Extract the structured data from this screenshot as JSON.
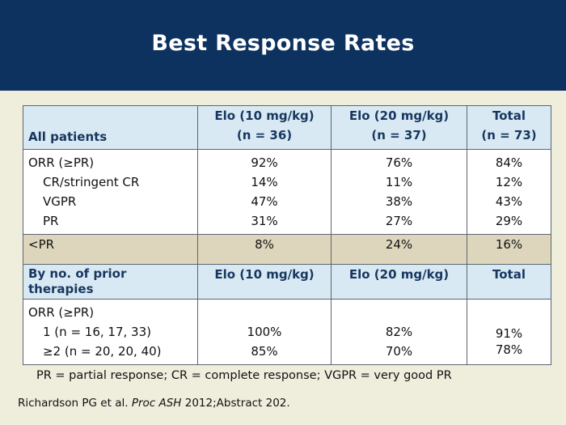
{
  "slide": {
    "title": "Best Response Rates",
    "colors": {
      "header_bg": "#0d325f",
      "table_header_bg": "#d8e9f4",
      "highlight_row_bg": "#ddd6bd",
      "slide_bg": "#efeddc"
    }
  },
  "table": {
    "header1": {
      "label": "All patients",
      "col1_line1": "Elo (10 mg/kg)",
      "col1_line2": "(n = 36)",
      "col2_line1": "Elo (20 mg/kg)",
      "col2_line2": "(n = 37)",
      "col3_line1": "Total",
      "col3_line2": "(n = 73)"
    },
    "group1": {
      "rows": [
        {
          "label": "ORR (≥PR)",
          "c1": "92%",
          "c2": "76%",
          "c3": "84%"
        },
        {
          "label": "CR/stringent CR",
          "c1": "14%",
          "c2": "11%",
          "c3": "12%"
        },
        {
          "label": "VGPR",
          "c1": "47%",
          "c2": "38%",
          "c3": "43%"
        },
        {
          "label": "PR",
          "c1": "31%",
          "c2": "27%",
          "c3": "29%"
        }
      ]
    },
    "less_than_pr": {
      "label": "<PR",
      "c1": "8%",
      "c2": "24%",
      "c3": "16%"
    },
    "header2": {
      "label_line1": "By no. of prior",
      "label_line2": "therapies",
      "col1": "Elo (10 mg/kg)",
      "col2": "Elo (20 mg/kg)",
      "col3": "Total"
    },
    "group2": {
      "rows": [
        {
          "label": "ORR (≥PR)",
          "c1": "",
          "c2": "",
          "c3": ""
        },
        {
          "label": "1 (n = 16, 17, 33)",
          "c1": "100%",
          "c2": "82%",
          "c3": "91%"
        },
        {
          "label": "≥2 (n = 20, 20, 40)",
          "c1": "85%",
          "c2": "70%",
          "c3": "78%"
        }
      ]
    }
  },
  "footnote": "PR = partial response; CR = complete response; VGPR = very good PR",
  "reference": {
    "authors": "Richardson PG et al.",
    "journal": "Proc ASH",
    "rest": "2012;Abstract 202."
  }
}
